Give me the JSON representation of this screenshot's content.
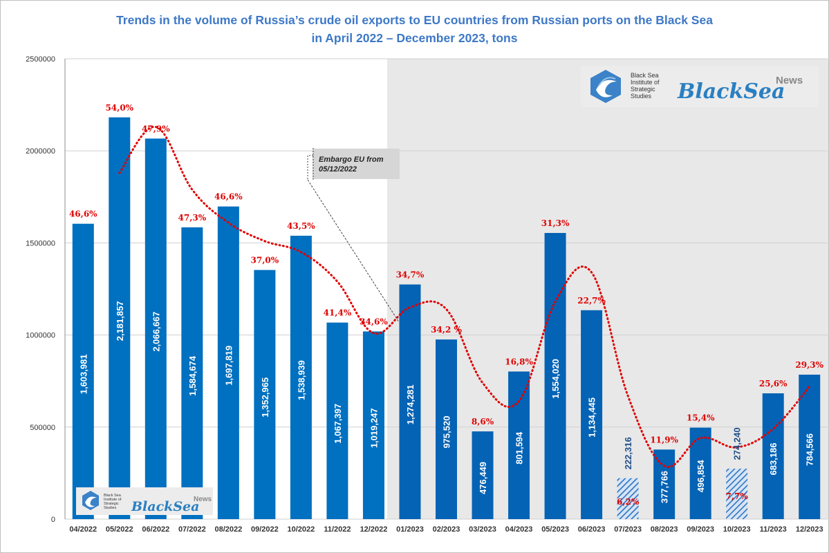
{
  "title_line1": "Trends in the volume of Russia’s crude oil exports to EU countries from Russian ports on the Black Sea",
  "title_line2": "in April 2022 – December 2023, tons",
  "annotation": {
    "line1": "Embargo EU from",
    "line2": "05/12/2022"
  },
  "logo_top": {
    "org_line1": "Black Sea",
    "org_line2": "Institute of",
    "org_line3": "Strategic",
    "org_line4": "Studies",
    "brand": "BlackSea",
    "brand_sup": "News"
  },
  "logo_bottom": {
    "org_line1": "Black Sea",
    "org_line2": "Institute of",
    "org_line3": "Strategic",
    "org_line4": "Studies",
    "brand": "BlackSea",
    "brand_sup": "News"
  },
  "colors": {
    "bar_pre_embargo": "#0070c0",
    "bar_post_embargo": "#0563b5",
    "hatched_bar": "#2e74c0",
    "trend_line": "#e00000",
    "pct_label": "#e00000",
    "title": "#3d78c7",
    "shaded_region": "#e8e8e8"
  },
  "chart_data": {
    "type": "bar",
    "categories": [
      "04/2022",
      "05/2022",
      "06/2022",
      "07/2022",
      "08/2022",
      "09/2022",
      "10/2022",
      "11/2022",
      "12/2022",
      "01/2023",
      "02/2023",
      "03/2023",
      "04/2023",
      "05/2023",
      "06/2023",
      "07/2023",
      "08/2023",
      "09/2023",
      "10/2023",
      "11/2023",
      "12/2023"
    ],
    "values": [
      1603981,
      2181857,
      2066667,
      1584674,
      1697819,
      1352965,
      1538939,
      1067397,
      1019247,
      1274281,
      975520,
      476449,
      801594,
      1554020,
      1134445,
      222316,
      377766,
      496854,
      274240,
      683186,
      784566
    ],
    "value_labels": [
      "1,603,981",
      "2,181,857",
      "2,066,667",
      "1,584,674",
      "1,697,819",
      "1,352,965",
      "1,538,939",
      "1,067,397",
      "1,019,247",
      "1,274,281",
      "975,520",
      "476,449",
      "801,594",
      "1,554,020",
      "1,134,445",
      "222,316",
      "377,766",
      "496,854",
      "274,240",
      "683,186",
      "784,566"
    ],
    "percent_labels": [
      "46,6%",
      "54,0%",
      "47,9%",
      "47,3%",
      "46,6%",
      "37,0%",
      "43,5%",
      "41,4%",
      "34,6%",
      "34,7%",
      "34,2 %",
      "8,6%",
      "16,8%",
      "31,3%",
      "22,7%",
      "6,2%",
      "11,9%",
      "15,4%",
      "7,7%",
      "25,6%",
      "29,3%"
    ],
    "hatched": [
      false,
      false,
      false,
      false,
      false,
      false,
      false,
      false,
      false,
      false,
      false,
      false,
      false,
      false,
      false,
      true,
      false,
      false,
      true,
      false,
      false
    ],
    "shaded_from_category": "01/2023",
    "trend_line": {
      "style": "dotted",
      "x": [
        "05/2022",
        "06/2022",
        "07/2022",
        "08/2022",
        "09/2022",
        "10/2022",
        "11/2022",
        "12/2022",
        "01/2023",
        "02/2023",
        "03/2023",
        "04/2023",
        "05/2023",
        "06/2023",
        "07/2023",
        "08/2023",
        "09/2023",
        "10/2023",
        "11/2023",
        "12/2023"
      ],
      "y": [
        1880000,
        2130000,
        1790000,
        1610000,
        1510000,
        1450000,
        1290000,
        1010000,
        1150000,
        1140000,
        740000,
        640000,
        1180000,
        1340000,
        670000,
        290000,
        440000,
        390000,
        490000,
        720000
      ]
    },
    "ylim": [
      0,
      2500000
    ],
    "yticks": [
      "0",
      "500000",
      "1000000",
      "1500000",
      "2000000",
      "2500000"
    ],
    "xlabel": "",
    "ylabel": "",
    "grid": true
  }
}
